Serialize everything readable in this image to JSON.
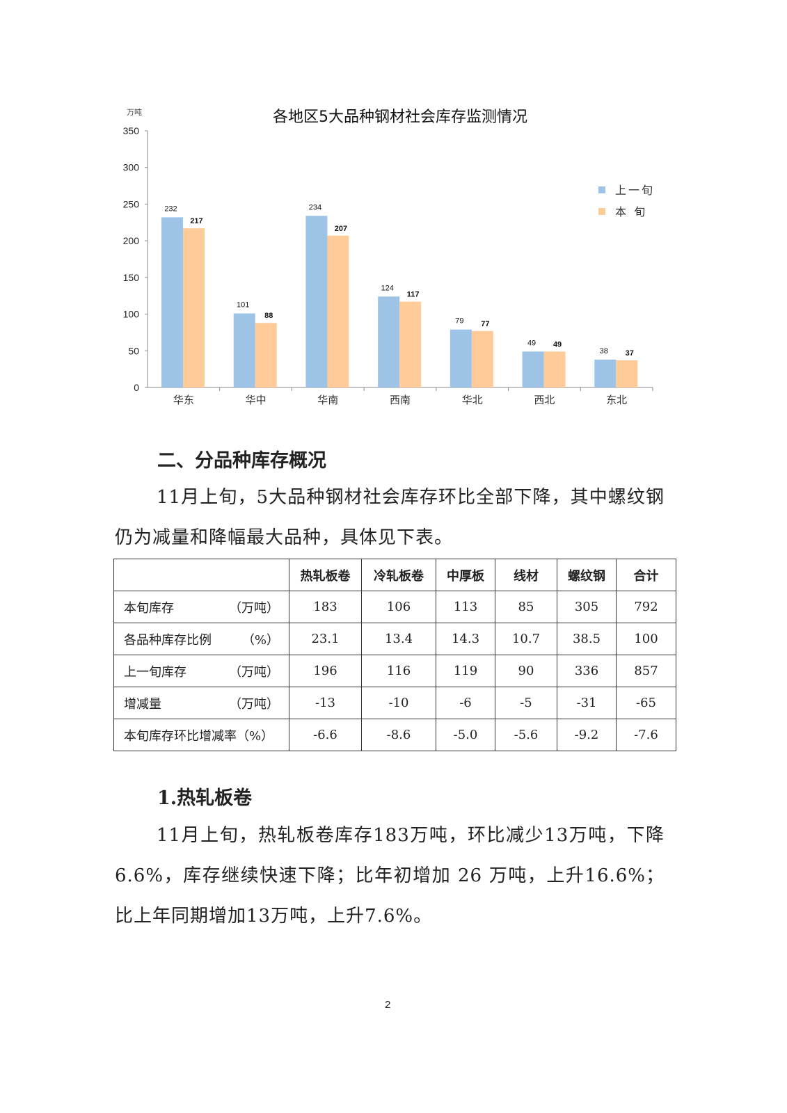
{
  "chart_data": {
    "type": "bar",
    "title": "各地区5大品种钢材社会库存监测情况",
    "unit_label": "万吨",
    "categories": [
      "华东",
      "华中",
      "华南",
      "西南",
      "华北",
      "西北",
      "东北"
    ],
    "series": [
      {
        "name": "上一旬",
        "values": [
          232,
          101,
          234,
          124,
          79,
          49,
          38
        ],
        "color": "#9DC3E6"
      },
      {
        "name": "本 旬",
        "values": [
          217,
          88,
          207,
          117,
          77,
          49,
          37
        ],
        "color": "#FFCC99"
      }
    ],
    "ylim": [
      0,
      350
    ],
    "yticks": [
      "0",
      "50",
      "100",
      "150",
      "200",
      "250",
      "300",
      "350"
    ],
    "grid": false,
    "legend": "right"
  },
  "section2": {
    "heading": "二、分品种库存概况",
    "paragraph": "11月上旬，5大品种钢材社会库存环比全部下降，其中螺纹钢仍为减量和降幅最大品种，具体见下表。"
  },
  "table": {
    "headers": [
      "",
      "热轧板卷",
      "冷轧板卷",
      "中厚板",
      "线材",
      "螺纹钢",
      "合计"
    ],
    "rows": [
      {
        "label": "本旬库存",
        "unit": "（万吨）",
        "values": [
          "183",
          "106",
          "113",
          "85",
          "305",
          "792"
        ]
      },
      {
        "label": "各品种库存比例",
        "unit": "（%）",
        "values": [
          "23.1",
          "13.4",
          "14.3",
          "10.7",
          "38.5",
          "100"
        ]
      },
      {
        "label": "上一旬库存",
        "unit": "（万吨）",
        "values": [
          "196",
          "116",
          "119",
          "90",
          "336",
          "857"
        ]
      },
      {
        "label": "增减量",
        "unit": "（万吨）",
        "values": [
          "-13",
          "-10",
          "-6",
          "-5",
          "-31",
          "-65"
        ]
      },
      {
        "label": "本旬库存环比增减率（%）",
        "unit": "",
        "values": [
          "-6.6",
          "-8.6",
          "-5.0",
          "-5.6",
          "-9.2",
          "-7.6"
        ]
      }
    ]
  },
  "section3": {
    "heading": "1.热轧板卷",
    "paragraph": "11月上旬，热轧板卷库存183万吨，环比减少13万吨，下降 6.6%，库存继续快速下降；比年初增加 26 万吨，上升16.6%；比上年同期增加13万吨，上升7.6%。"
  },
  "page_number": "2"
}
